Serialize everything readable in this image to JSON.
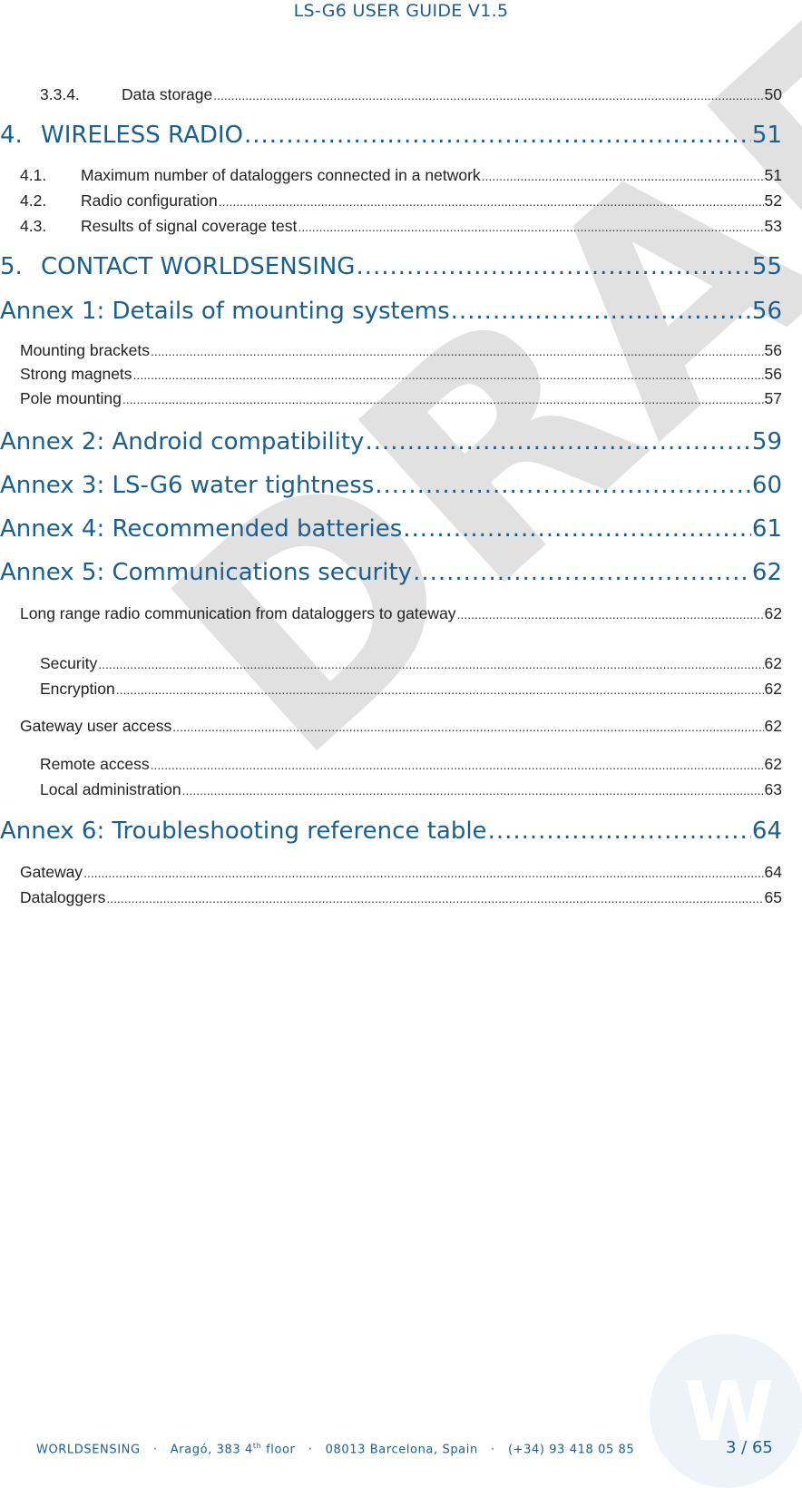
{
  "header": {
    "title": "LS-G6 USER GUIDE V1.5"
  },
  "toc": [
    {
      "level": 3,
      "number": "3.3.4.",
      "title": "Data storage",
      "page": "50"
    },
    {
      "level": 1,
      "number": "4.",
      "title": "WIRELESS RADIO",
      "page": "51"
    },
    {
      "level": 2,
      "number": "4.1.",
      "title": "Maximum number of dataloggers connected in a network",
      "page": "51"
    },
    {
      "level": 2,
      "number": "4.2.",
      "title": "Radio configuration",
      "page": "52"
    },
    {
      "level": 2,
      "number": "4.3.",
      "title": "Results of signal coverage test",
      "page": "53"
    },
    {
      "level": 1,
      "number": "5.",
      "title": "CONTACT WORLDSENSING",
      "page": "55"
    },
    {
      "level": 1,
      "number": "",
      "title": "Annex 1: Details of mounting systems",
      "page": "56"
    },
    {
      "level": 2,
      "number": "",
      "title": "Mounting brackets",
      "page": "56"
    },
    {
      "level": 2,
      "number": "",
      "title": "Strong magnets",
      "page": "56"
    },
    {
      "level": 2,
      "number": "",
      "title": "Pole mounting",
      "page": "57"
    },
    {
      "level": 1,
      "number": "",
      "title": "Annex 2: Android compatibility",
      "page": "59"
    },
    {
      "level": 1,
      "number": "",
      "title": "Annex 3: LS-G6 water tightness",
      "page": "60"
    },
    {
      "level": 1,
      "number": "",
      "title": "Annex 4: Recommended batteries",
      "page": "61"
    },
    {
      "level": 1,
      "number": "",
      "title": "Annex 5: Communications security",
      "page": "62"
    },
    {
      "level": 2,
      "number": "",
      "title": "Long range radio communication from dataloggers to gateway",
      "page": "62"
    },
    {
      "level": 3,
      "number": "",
      "title": "Security",
      "page": "62"
    },
    {
      "level": 3,
      "number": "",
      "title": "Encryption",
      "page": "62"
    },
    {
      "level": 2,
      "number": "",
      "title": "Gateway user access",
      "page": "62"
    },
    {
      "level": 3,
      "number": "",
      "title": "Remote access",
      "page": "62"
    },
    {
      "level": 3,
      "number": "",
      "title": "Local administration",
      "page": "63"
    },
    {
      "level": 1,
      "number": "",
      "title": "Annex 6: Troubleshooting reference table",
      "page": "64"
    },
    {
      "level": 2,
      "number": "",
      "title": "Gateway",
      "page": "64"
    },
    {
      "level": 2,
      "number": "",
      "title": "Dataloggers",
      "page": "65"
    }
  ],
  "watermark": "DRAFT",
  "footer": {
    "company": "WORLDSENSING",
    "address_street": "Aragó, 383",
    "address_floor_num": "4",
    "address_floor_sup": "th",
    "address_floor_word": "floor",
    "address_city": "08013 Barcelona, Spain",
    "phone": "(+34) 93 418 05 85",
    "separator": "·",
    "logo_letter": "W",
    "page_number": "3 / 65"
  }
}
